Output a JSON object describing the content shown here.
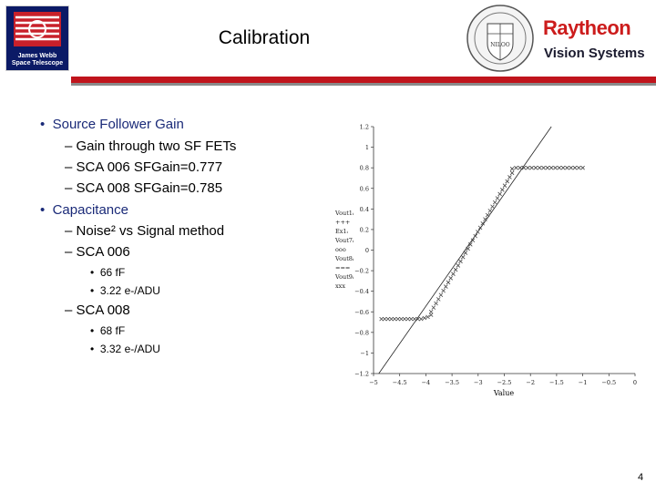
{
  "header": {
    "logo_caption_1": "James Webb",
    "logo_caption_2": "Space Telescope",
    "title": "Calibration",
    "brand_name": "Raytheon",
    "brand_sub": "Vision Systems",
    "seal_text": "NILOO"
  },
  "bullets": [
    {
      "level": 1,
      "text": "Source Follower Gain"
    },
    {
      "level": 2,
      "text": "Gain through two SF FETs"
    },
    {
      "level": 2,
      "text": "SCA 006 SFGain=0.777"
    },
    {
      "level": 2,
      "text": "SCA 008 SFGain=0.785"
    },
    {
      "level": 1,
      "text": "Capacitance"
    },
    {
      "level": 2,
      "text": "Noise² vs Signal method"
    },
    {
      "level": 2,
      "text": "SCA 006"
    },
    {
      "level": 3,
      "text": "66 fF"
    },
    {
      "level": 3,
      "text": "3.22 e-/ADU"
    },
    {
      "level": 2,
      "text": "SCA 008"
    },
    {
      "level": 3,
      "text": "68 fF"
    },
    {
      "level": 3,
      "text": "3.32 e-/ADU"
    }
  ],
  "colors": {
    "bullet_l1": "#1a2a78",
    "rule_red": "#c0141c",
    "rule_gray": "#8a8a8a",
    "brand": "#cc1c1c"
  },
  "chart_data": {
    "type": "scatter",
    "title": "",
    "xlabel": "Value",
    "ylabel": "",
    "xlim": [
      -5,
      0
    ],
    "ylim": [
      -1.2,
      1.2
    ],
    "x_ticks": [
      "−5",
      "−4.5",
      "−4",
      "−3.5",
      "−3",
      "−2.5",
      "−2",
      "−1.5",
      "−1",
      "−0.5",
      "0"
    ],
    "y_ticks": [
      "1.2",
      "1",
      "0.8",
      "0.6",
      "0.4",
      "0.2",
      "0",
      "−0.2",
      "−0.4",
      "−0.6",
      "−0.8",
      "−1",
      "−1.2"
    ],
    "y_legend": [
      "Vout1ᵢ",
      "+++",
      "Ex1ᵢ",
      "Vout7ᵢ",
      "ooo",
      "Vout8ᵢ",
      "===",
      "Vout9ᵢ",
      "xxx"
    ],
    "reference_line": {
      "x": [
        -4.9,
        -1.6
      ],
      "y": [
        -1.2,
        1.2
      ]
    },
    "series": [
      {
        "marker": "x",
        "x_start": -4.85,
        "x_end": -3.9,
        "y": [
          -0.67,
          -0.67,
          -0.67,
          -0.67,
          -0.67,
          -0.67,
          -0.67,
          -0.67,
          -0.67,
          -0.67,
          -0.67,
          -0.67,
          -0.67,
          -0.66,
          -0.65,
          -0.63
        ]
      },
      {
        "marker": "x",
        "x_start": -3.9,
        "x_end": -2.35,
        "y": [
          -0.6,
          0.75
        ]
      },
      {
        "marker": "x",
        "x_start": -2.35,
        "x_end": -1.0,
        "y": [
          0.79,
          0.8,
          0.8,
          0.8,
          0.8,
          0.8,
          0.8,
          0.8,
          0.8,
          0.8,
          0.8,
          0.8,
          0.8,
          0.8,
          0.8,
          0.8,
          0.8,
          0.8,
          0.8
        ]
      }
    ]
  },
  "page_number": "4"
}
